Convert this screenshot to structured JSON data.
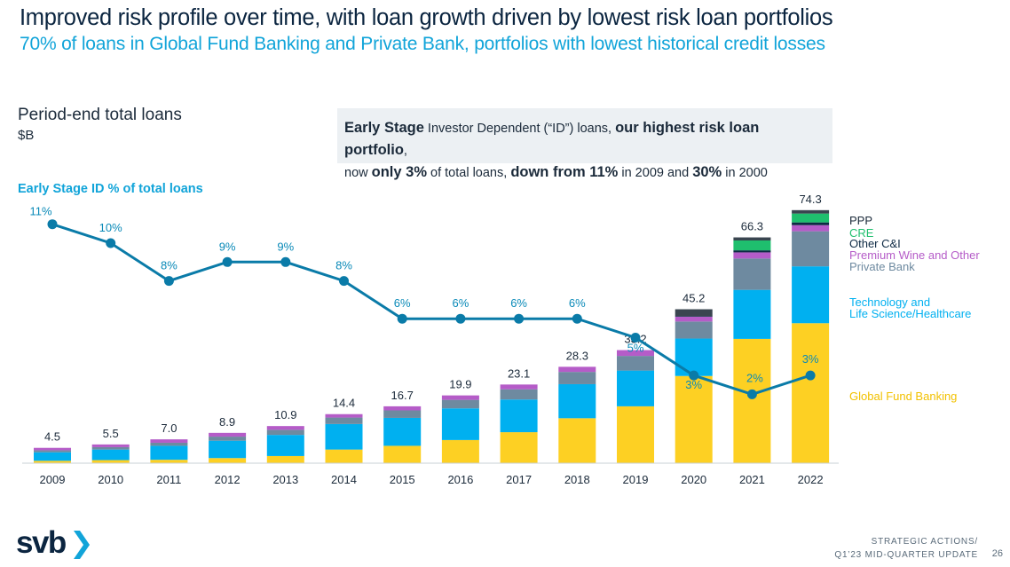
{
  "header": {
    "title": "Improved risk profile over time, with loan growth driven by lowest risk loan portfolios",
    "subtitle": "70% of loans in Global Fund Banking and Private Bank, portfolios with lowest historical credit losses"
  },
  "section": {
    "title": "Period-end total loans",
    "unit": "$B"
  },
  "callout": {
    "p1": "Early Stage",
    "p2": " Investor Dependent (“ID”) loans, ",
    "p3": "our highest risk loan portfolio",
    "p4": ",",
    "p5": "now ",
    "p6": "only 3%",
    "p7": " of total loans, ",
    "p8": "down from 11%",
    "p9": " in 2009 and ",
    "p10": "30%",
    "p11": " in 2000"
  },
  "id_line_label": "Early Stage ID % of total loans",
  "colors": {
    "gfb": "#fdd023",
    "tech": "#00b0f0",
    "private_bank": "#6e8aa0",
    "wine": "#b55cc8",
    "other_ci": "#0e2a44",
    "cre": "#1fbf6e",
    "ppp": "#3a4550",
    "line": "#0a7ba8",
    "line_label": "#0a8ab8",
    "dark_text": "#1b2a3a"
  },
  "chart_data": {
    "type": "bar",
    "stacked": true,
    "categories": [
      "2009",
      "2010",
      "2011",
      "2012",
      "2013",
      "2014",
      "2015",
      "2016",
      "2017",
      "2018",
      "2019",
      "2020",
      "2021",
      "2022"
    ],
    "totals": [
      4.5,
      5.5,
      7.0,
      8.9,
      10.9,
      14.4,
      16.7,
      19.9,
      23.1,
      28.3,
      33.2,
      45.2,
      66.3,
      74.3
    ],
    "total_labels": [
      "4.5",
      "5.5",
      "7.0",
      "8.9",
      "10.9",
      "14.4",
      "16.7",
      "19.9",
      "23.1",
      "28.3",
      "33.2",
      "45.2",
      "66.3",
      "74.3"
    ],
    "series": [
      {
        "name": "Global Fund Banking",
        "color": "#fdd023",
        "values": [
          0.7,
          0.9,
          1.0,
          1.5,
          2.1,
          4.0,
          5.1,
          6.8,
          9.1,
          13.2,
          16.7,
          25.6,
          36.5,
          41.1
        ]
      },
      {
        "name": "Technology and Life Science/Healthcare",
        "color": "#00b0f0",
        "values": [
          2.5,
          3.1,
          4.1,
          5.1,
          6.2,
          7.5,
          8.2,
          9.3,
          9.6,
          10.0,
          10.5,
          11.0,
          14.4,
          16.7
        ]
      },
      {
        "name": "Private Bank",
        "color": "#6e8aa0",
        "values": [
          0.6,
          0.7,
          0.9,
          1.2,
          1.5,
          1.9,
          2.2,
          2.5,
          3.0,
          3.6,
          4.3,
          5.0,
          9.2,
          10.3
        ]
      },
      {
        "name": "Premium Wine and Other",
        "color": "#b55cc8",
        "values": [
          0.7,
          0.8,
          1.0,
          1.1,
          1.1,
          1.0,
          1.2,
          1.3,
          1.4,
          1.5,
          1.7,
          1.4,
          1.8,
          1.8
        ]
      },
      {
        "name": "Other C&I",
        "color": "#0e2a44",
        "values": [
          0,
          0,
          0,
          0,
          0,
          0,
          0,
          0,
          0,
          0,
          0,
          0.2,
          0.6,
          0.8
        ]
      },
      {
        "name": "CRE",
        "color": "#1fbf6e",
        "values": [
          0,
          0,
          0,
          0,
          0,
          0,
          0,
          0,
          0,
          0,
          0,
          0,
          2.9,
          2.6
        ]
      },
      {
        "name": "PPP",
        "color": "#3a4550",
        "values": [
          0,
          0,
          0,
          0,
          0,
          0,
          0,
          0,
          0,
          0,
          0,
          2.0,
          0.9,
          1.0
        ]
      }
    ],
    "legend": [
      {
        "text": "PPP",
        "color": "#1b2a3a"
      },
      {
        "text": "CRE",
        "color": "#1fbf6e"
      },
      {
        "text": "Other C&I",
        "color": "#0e2a44"
      },
      {
        "text": "Premium Wine and Other",
        "color": "#b55cc8"
      },
      {
        "text": "Private Bank",
        "color": "#6e8aa0"
      },
      {
        "text": "Technology and",
        "color": "#00b0f0"
      },
      {
        "text": "Life Science/Healthcare",
        "color": "#00b0f0"
      },
      {
        "text": "Global Fund Banking",
        "color": "#f2c100"
      }
    ],
    "line_series": {
      "name": "Early Stage ID % of total loans",
      "unit": "%",
      "values": [
        11,
        10,
        8,
        9,
        9,
        8,
        6,
        6,
        6,
        6,
        5,
        3,
        2,
        3
      ],
      "labels": [
        "11%",
        "10%",
        "8%",
        "9%",
        "9%",
        "8%",
        "6%",
        "6%",
        "6%",
        "6%",
        "5%",
        "3%",
        "2%",
        "3%"
      ]
    },
    "ylim": [
      0,
      80
    ],
    "grid": false
  },
  "footer": {
    "line1": "STRATEGIC ACTIONS/",
    "line2": "Q1’23 MID-QUARTER UPDATE",
    "page": "26"
  },
  "logo": {
    "text": "svb"
  }
}
